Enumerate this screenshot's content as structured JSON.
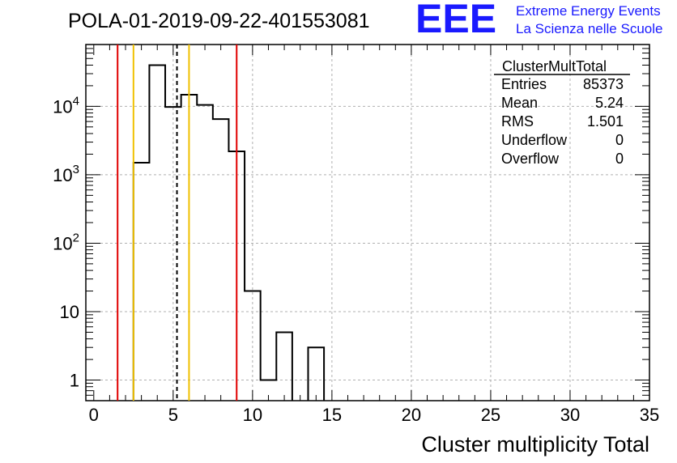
{
  "title": "POLA-01-2019-09-22-401553081",
  "logo": {
    "letters": "EEE",
    "line1": "Extreme Energy Events",
    "line2": "La Scienza nelle Scuole",
    "color": "#1a1aff"
  },
  "stats_box": {
    "name": "ClusterMultTotal",
    "rows": [
      {
        "label": "Entries",
        "value": "85373"
      },
      {
        "label": "Mean",
        "value": "5.24"
      },
      {
        "label": "RMS",
        "value": "1.501"
      },
      {
        "label": "Underflow",
        "value": "0"
      },
      {
        "label": "Overflow",
        "value": "0"
      }
    ]
  },
  "chart_data": {
    "type": "bar",
    "histogram": true,
    "xlabel": "Cluster multiplicity Total",
    "ylabel": "",
    "xlim": [
      -0.5,
      35
    ],
    "ylim": [
      0.5,
      80000
    ],
    "y_scale": "log",
    "grid": true,
    "x_ticks": [
      0,
      5,
      10,
      15,
      20,
      25,
      30,
      35
    ],
    "y_ticks": [
      {
        "value": 1,
        "base": "1",
        "exp": ""
      },
      {
        "value": 10,
        "base": "10",
        "exp": ""
      },
      {
        "value": 100,
        "base": "10",
        "exp": "2"
      },
      {
        "value": 1000,
        "base": "10",
        "exp": "3"
      },
      {
        "value": 10000,
        "base": "10",
        "exp": "4"
      }
    ],
    "bin_width": 1,
    "bin_centers": [
      3,
      4,
      5,
      6,
      7,
      8,
      9,
      10,
      11,
      12,
      13,
      14
    ],
    "values": [
      1500,
      40000,
      9800,
      14800,
      10500,
      6500,
      2200,
      20,
      1,
      5,
      0,
      3
    ],
    "markers": [
      {
        "x": 1.5,
        "color": "#e00000",
        "style": "solid"
      },
      {
        "x": 2.5,
        "color": "#f0c000",
        "style": "solid"
      },
      {
        "x": 5.24,
        "color": "#000000",
        "style": "dashed"
      },
      {
        "x": 6,
        "color": "#f0c000",
        "style": "solid"
      },
      {
        "x": 9,
        "color": "#e00000",
        "style": "solid"
      }
    ]
  }
}
